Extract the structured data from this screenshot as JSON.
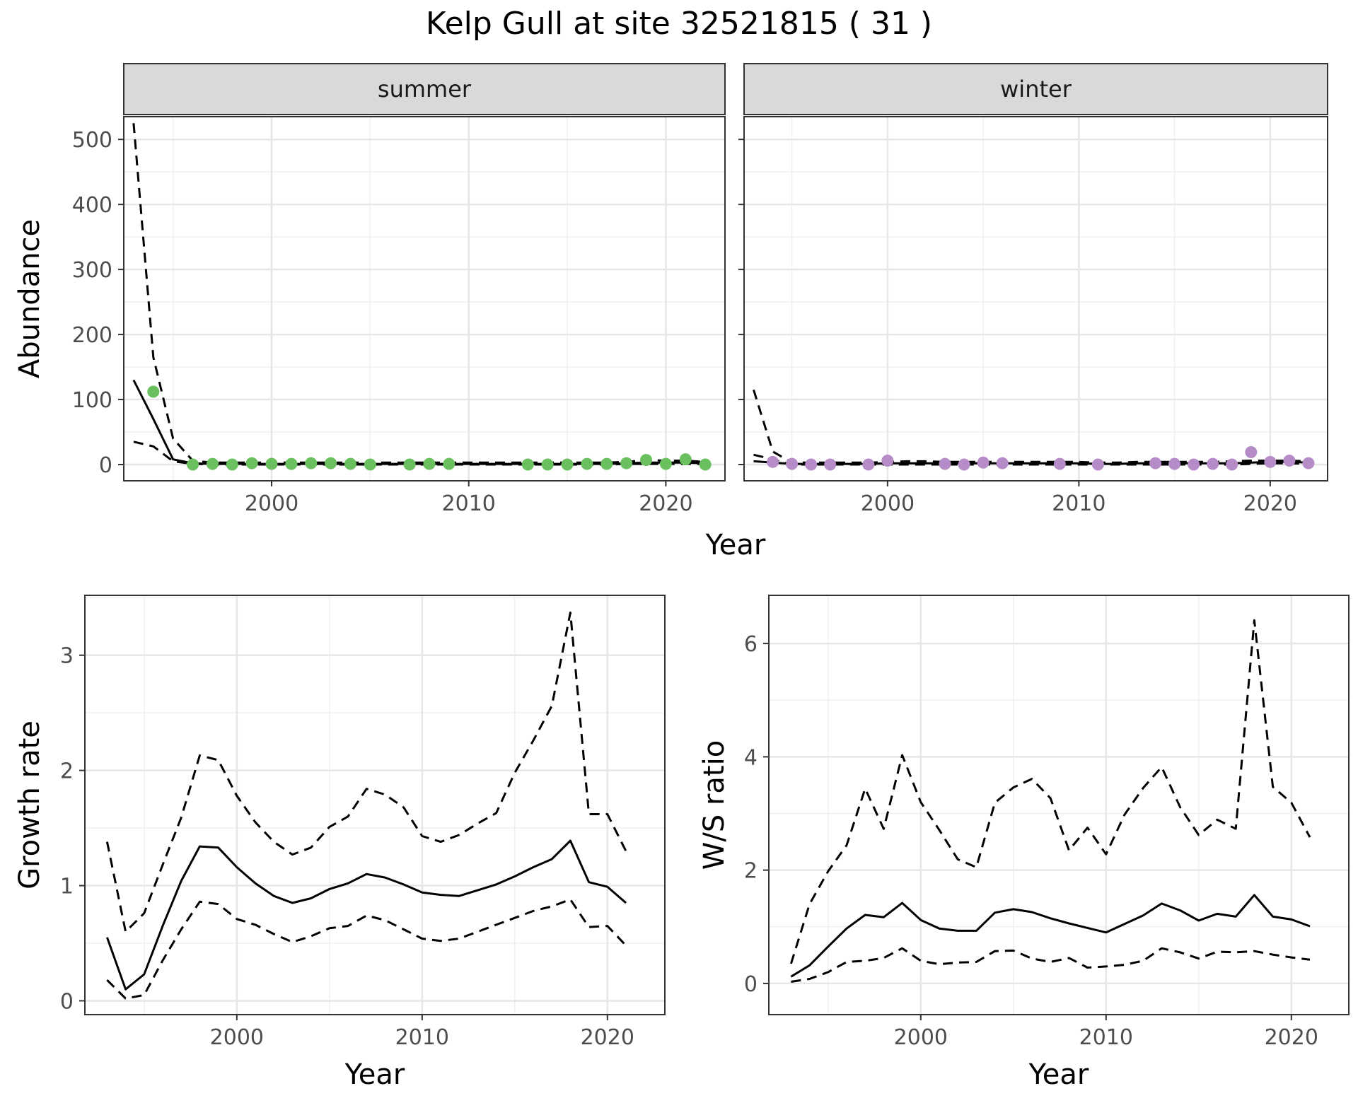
{
  "title": "Kelp Gull at site 32521815 ( 31 )",
  "chart_data": [
    {
      "type": "line",
      "panel": "summer",
      "strip_label": "summer",
      "xlabel": "Year",
      "ylabel": "Abundance",
      "xlim": [
        1992.5,
        2023.0
      ],
      "ylim": [
        -25,
        535
      ],
      "x_ticks": [
        2000,
        2010,
        2020
      ],
      "y_ticks": [
        0,
        100,
        200,
        300,
        400,
        500
      ],
      "grid": true,
      "point_color": "#6abf5e",
      "series": [
        {
          "role": "estimate",
          "style": "solid",
          "x": [
            1993,
            1994,
            1995,
            1996,
            1997,
            1998,
            1999,
            2000,
            2001,
            2002,
            2003,
            2004,
            2005,
            2006,
            2007,
            2008,
            2009,
            2010,
            2011,
            2012,
            2013,
            2014,
            2015,
            2016,
            2017,
            2018,
            2019,
            2020,
            2021,
            2022
          ],
          "values": [
            130,
            70,
            8,
            2,
            1,
            1,
            1,
            1,
            1,
            1,
            1,
            1,
            1,
            1,
            1,
            1,
            1,
            1,
            1,
            1,
            1,
            1,
            1,
            1,
            1,
            2,
            3,
            3,
            3,
            2
          ]
        },
        {
          "role": "upper",
          "style": "dashed",
          "x": [
            1993,
            1994,
            1995,
            1996,
            1997,
            1998,
            1999,
            2000,
            2001,
            2002,
            2003,
            2004,
            2005,
            2006,
            2007,
            2008,
            2009,
            2010,
            2011,
            2012,
            2013,
            2014,
            2015,
            2016,
            2017,
            2018,
            2019,
            2020,
            2021,
            2022
          ],
          "values": [
            525,
            165,
            40,
            6,
            3,
            3,
            3,
            3,
            3,
            3,
            3,
            3,
            3,
            3,
            3,
            3,
            3,
            3,
            3,
            3,
            3,
            3,
            3,
            3,
            3,
            4,
            7,
            6,
            6,
            4
          ]
        },
        {
          "role": "lower",
          "style": "dashed",
          "x": [
            1993,
            1994,
            1995,
            1996,
            1997,
            1998,
            1999,
            2000,
            2001,
            2002,
            2003,
            2004,
            2005,
            2006,
            2007,
            2008,
            2009,
            2010,
            2011,
            2012,
            2013,
            2014,
            2015,
            2016,
            2017,
            2018,
            2019,
            2020,
            2021,
            2022
          ],
          "values": [
            35,
            28,
            5,
            1,
            0,
            0,
            0,
            0,
            0,
            0,
            0,
            0,
            0,
            0,
            0,
            0,
            0,
            0,
            0,
            0,
            0,
            0,
            0,
            0,
            0,
            1,
            1,
            1,
            1,
            1
          ]
        }
      ],
      "points": {
        "x": [
          1994,
          1996,
          1997,
          1998,
          1999,
          2000,
          2001,
          2002,
          2003,
          2004,
          2005,
          2007,
          2008,
          2009,
          2013,
          2014,
          2015,
          2016,
          2017,
          2018,
          2019,
          2020,
          2021,
          2022
        ],
        "y": [
          112,
          0,
          1,
          0,
          2,
          1,
          1,
          2,
          2,
          1,
          0,
          0,
          1,
          1,
          0,
          0,
          0,
          1,
          1,
          2,
          7,
          1,
          8,
          0
        ]
      }
    },
    {
      "type": "line",
      "panel": "winter",
      "strip_label": "winter",
      "xlabel": "Year",
      "ylabel": "Abundance",
      "xlim": [
        1992.5,
        2023.0
      ],
      "ylim": [
        -25,
        535
      ],
      "x_ticks": [
        2000,
        2010,
        2020
      ],
      "y_ticks": [
        0,
        100,
        200,
        300,
        400,
        500
      ],
      "grid": true,
      "point_color": "#b68cc8",
      "series": [
        {
          "role": "estimate",
          "style": "solid",
          "x": [
            1993,
            1994,
            1995,
            1996,
            1997,
            1998,
            1999,
            2000,
            2001,
            2002,
            2003,
            2004,
            2005,
            2006,
            2007,
            2008,
            2009,
            2010,
            2011,
            2012,
            2013,
            2014,
            2015,
            2016,
            2017,
            2018,
            2019,
            2020,
            2021,
            2022
          ],
          "values": [
            5,
            3,
            1,
            1,
            1,
            1,
            1,
            2,
            2,
            2,
            2,
            2,
            2,
            2,
            2,
            2,
            2,
            2,
            1,
            1,
            2,
            2,
            2,
            2,
            2,
            2,
            3,
            4,
            4,
            3
          ]
        },
        {
          "role": "upper",
          "style": "dashed",
          "x": [
            1993,
            1994,
            1995,
            1996,
            1997,
            1998,
            1999,
            2000,
            2001,
            2002,
            2003,
            2004,
            2005,
            2006,
            2007,
            2008,
            2009,
            2010,
            2011,
            2012,
            2013,
            2014,
            2015,
            2016,
            2017,
            2018,
            2019,
            2020,
            2021,
            2022
          ],
          "values": [
            115,
            20,
            3,
            3,
            3,
            3,
            3,
            4,
            5,
            5,
            4,
            4,
            4,
            4,
            4,
            4,
            4,
            4,
            3,
            3,
            4,
            4,
            4,
            4,
            4,
            5,
            6,
            6,
            6,
            5
          ]
        },
        {
          "role": "lower",
          "style": "dashed",
          "x": [
            1993,
            1994,
            1995,
            1996,
            1997,
            1998,
            1999,
            2000,
            2001,
            2002,
            2003,
            2004,
            2005,
            2006,
            2007,
            2008,
            2009,
            2010,
            2011,
            2012,
            2013,
            2014,
            2015,
            2016,
            2017,
            2018,
            2019,
            2020,
            2021,
            2022
          ],
          "values": [
            15,
            8,
            0,
            0,
            0,
            0,
            0,
            0,
            0,
            0,
            0,
            0,
            0,
            0,
            0,
            0,
            0,
            0,
            0,
            0,
            0,
            0,
            0,
            0,
            0,
            0,
            1,
            2,
            2,
            1
          ]
        }
      ],
      "points": {
        "x": [
          1994,
          1995,
          1996,
          1997,
          1999,
          2000,
          2003,
          2004,
          2005,
          2006,
          2009,
          2011,
          2014,
          2015,
          2016,
          2017,
          2018,
          2019,
          2020,
          2021,
          2022
        ],
        "y": [
          4,
          1,
          0,
          0,
          0,
          6,
          1,
          0,
          3,
          2,
          1,
          0,
          2,
          1,
          0,
          1,
          0,
          19,
          4,
          6,
          2
        ]
      }
    },
    {
      "type": "line",
      "panel": "growth",
      "xlabel": "Year",
      "ylabel": "Growth rate",
      "xlim": [
        1991.8,
        2023.1
      ],
      "ylim": [
        -0.12,
        3.52
      ],
      "x_ticks": [
        2000,
        2010,
        2020
      ],
      "y_ticks": [
        0,
        1,
        2,
        3
      ],
      "grid": true,
      "series": [
        {
          "role": "estimate",
          "style": "solid",
          "x": [
            1993,
            1994,
            1995,
            1996,
            1997,
            1998,
            1999,
            2000,
            2001,
            2002,
            2003,
            2004,
            2005,
            2006,
            2007,
            2008,
            2009,
            2010,
            2011,
            2012,
            2013,
            2014,
            2015,
            2016,
            2017,
            2018,
            2019,
            2020,
            2021
          ],
          "values": [
            0.55,
            0.1,
            0.23,
            0.65,
            1.04,
            1.34,
            1.33,
            1.16,
            1.02,
            0.91,
            0.85,
            0.89,
            0.97,
            1.02,
            1.1,
            1.07,
            1.01,
            0.94,
            0.92,
            0.91,
            0.96,
            1.01,
            1.08,
            1.16,
            1.23,
            1.39,
            1.03,
            0.99,
            0.85
          ]
        },
        {
          "role": "upper",
          "style": "dashed",
          "x": [
            1993,
            1994,
            1995,
            1996,
            1997,
            1998,
            1999,
            2000,
            2001,
            2002,
            2003,
            2004,
            2005,
            2006,
            2007,
            2008,
            2009,
            2010,
            2011,
            2012,
            2013,
            2014,
            2015,
            2016,
            2017,
            2018,
            2019,
            2020,
            2021
          ],
          "values": [
            1.38,
            0.6,
            0.76,
            1.18,
            1.59,
            2.13,
            2.09,
            1.78,
            1.55,
            1.38,
            1.27,
            1.33,
            1.51,
            1.6,
            1.84,
            1.79,
            1.68,
            1.43,
            1.38,
            1.44,
            1.54,
            1.63,
            1.98,
            2.26,
            2.56,
            3.37,
            1.62,
            1.62,
            1.3
          ]
        },
        {
          "role": "lower",
          "style": "dashed",
          "x": [
            1993,
            1994,
            1995,
            1996,
            1997,
            1998,
            1999,
            2000,
            2001,
            2002,
            2003,
            2004,
            2005,
            2006,
            2007,
            2008,
            2009,
            2010,
            2011,
            2012,
            2013,
            2014,
            2015,
            2016,
            2017,
            2018,
            2019,
            2020,
            2021
          ],
          "values": [
            0.18,
            0.02,
            0.05,
            0.35,
            0.62,
            0.86,
            0.84,
            0.71,
            0.66,
            0.58,
            0.51,
            0.56,
            0.63,
            0.65,
            0.74,
            0.7,
            0.62,
            0.54,
            0.52,
            0.54,
            0.6,
            0.66,
            0.72,
            0.78,
            0.82,
            0.88,
            0.64,
            0.65,
            0.48
          ]
        }
      ]
    },
    {
      "type": "line",
      "panel": "ws_ratio",
      "xlabel": "Year",
      "ylabel": "W/S ratio",
      "xlim": [
        1991.8,
        2023.1
      ],
      "ylim": [
        -0.55,
        6.85
      ],
      "x_ticks": [
        2000,
        2010,
        2020
      ],
      "y_ticks": [
        0,
        2,
        4,
        6
      ],
      "grid": true,
      "series": [
        {
          "role": "estimate",
          "style": "solid",
          "x": [
            1993,
            1994,
            1995,
            1996,
            1997,
            1998,
            1999,
            2000,
            2001,
            2002,
            2003,
            2004,
            2005,
            2006,
            2007,
            2008,
            2009,
            2010,
            2011,
            2012,
            2013,
            2014,
            2015,
            2016,
            2017,
            2018,
            2019,
            2020,
            2021
          ],
          "values": [
            0.12,
            0.32,
            0.65,
            0.97,
            1.21,
            1.17,
            1.42,
            1.12,
            0.97,
            0.93,
            0.93,
            1.25,
            1.31,
            1.26,
            1.15,
            1.06,
            0.98,
            0.9,
            1.05,
            1.2,
            1.41,
            1.29,
            1.11,
            1.23,
            1.18,
            1.56,
            1.18,
            1.13,
            1.01
          ]
        },
        {
          "role": "upper",
          "style": "dashed",
          "x": [
            1993,
            1994,
            1995,
            1996,
            1997,
            1998,
            1999,
            2000,
            2001,
            2002,
            2003,
            2004,
            2005,
            2006,
            2007,
            2008,
            2009,
            2010,
            2011,
            2012,
            2013,
            2014,
            2015,
            2016,
            2017,
            2018,
            2019,
            2020,
            2021
          ],
          "values": [
            0.35,
            1.4,
            1.98,
            2.44,
            3.44,
            2.73,
            4.03,
            3.2,
            2.71,
            2.19,
            2.05,
            3.19,
            3.46,
            3.61,
            3.27,
            2.35,
            2.75,
            2.28,
            2.98,
            3.45,
            3.82,
            3.11,
            2.62,
            2.89,
            2.73,
            6.41,
            3.47,
            3.19,
            2.58
          ]
        },
        {
          "role": "lower",
          "style": "dashed",
          "x": [
            1993,
            1994,
            1995,
            1996,
            1997,
            1998,
            1999,
            2000,
            2001,
            2002,
            2003,
            2004,
            2005,
            2006,
            2007,
            2008,
            2009,
            2010,
            2011,
            2012,
            2013,
            2014,
            2015,
            2016,
            2017,
            2018,
            2019,
            2020,
            2021
          ],
          "values": [
            0.03,
            0.08,
            0.2,
            0.38,
            0.4,
            0.45,
            0.62,
            0.4,
            0.34,
            0.37,
            0.38,
            0.57,
            0.58,
            0.44,
            0.38,
            0.45,
            0.28,
            0.3,
            0.33,
            0.4,
            0.62,
            0.55,
            0.44,
            0.56,
            0.55,
            0.57,
            0.51,
            0.46,
            0.42
          ]
        }
      ]
    }
  ]
}
